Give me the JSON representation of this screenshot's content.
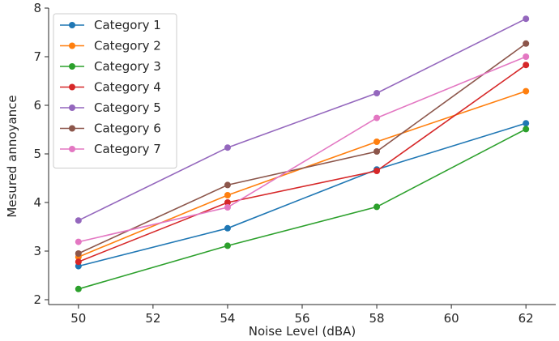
{
  "chart_data": {
    "type": "line",
    "title": "",
    "xlabel": "Noise Level (dBA)",
    "ylabel": "Mesured annoyance",
    "x": [
      50,
      54,
      58,
      62
    ],
    "xlim": [
      49.2,
      62.8
    ],
    "ylim": [
      1.9,
      8.0
    ],
    "xticks": [
      50,
      52,
      54,
      56,
      58,
      60,
      62
    ],
    "yticks": [
      2,
      3,
      4,
      5,
      6,
      7,
      8
    ],
    "grid": false,
    "legend_position": "top-left",
    "series": [
      {
        "name": "Category 1",
        "color": "#1f77b4",
        "values": [
          2.69,
          3.47,
          4.68,
          5.63
        ]
      },
      {
        "name": "Category 2",
        "color": "#ff7f0e",
        "values": [
          2.88,
          4.15,
          5.25,
          6.29
        ]
      },
      {
        "name": "Category 3",
        "color": "#2ca02c",
        "values": [
          2.22,
          3.11,
          3.91,
          5.51
        ]
      },
      {
        "name": "Category 4",
        "color": "#d62728",
        "values": [
          2.78,
          4.0,
          4.65,
          6.83
        ]
      },
      {
        "name": "Category 5",
        "color": "#9467bd",
        "values": [
          3.63,
          5.13,
          6.25,
          7.78
        ]
      },
      {
        "name": "Category 6",
        "color": "#8c564b",
        "values": [
          2.95,
          4.36,
          5.05,
          7.27
        ]
      },
      {
        "name": "Category 7",
        "color": "#e377c2",
        "values": [
          3.19,
          3.9,
          5.74,
          7.0
        ]
      }
    ]
  }
}
